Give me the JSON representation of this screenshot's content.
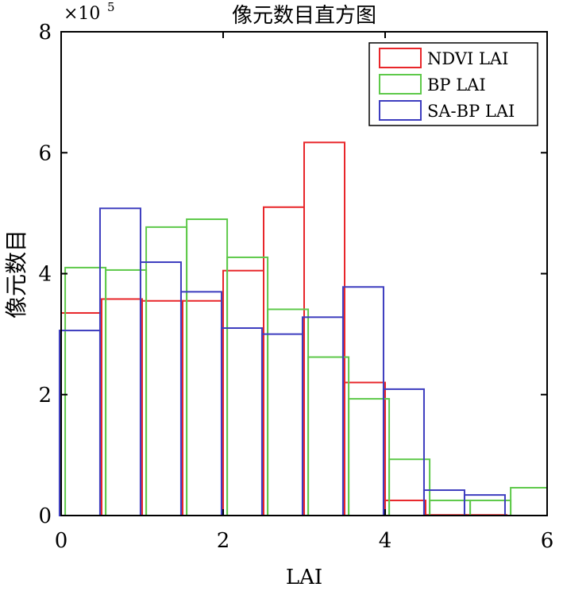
{
  "chart_data": {
    "type": "bar",
    "title": "像元数目直方图",
    "xlabel": "LAI",
    "ylabel": "像元数目",
    "y_multiplier": "×10",
    "y_multiplier_exp": "5",
    "xlim": [
      0,
      6
    ],
    "ylim": [
      0,
      8
    ],
    "xticks": [
      0,
      2,
      4,
      6
    ],
    "yticks": [
      0,
      2,
      4,
      6,
      8
    ],
    "xtick_labels": [
      "0",
      "2",
      "4",
      "6"
    ],
    "ytick_labels": [
      "0",
      "2",
      "4",
      "6",
      "8"
    ],
    "grid": false,
    "legend_position": "top-right",
    "bin_width": 0.5,
    "series": [
      {
        "name": "NDVI LAI",
        "color": "#e8262a",
        "x_offset": 0.0,
        "bar_width": 0.5,
        "values": [
          3.35,
          3.58,
          3.55,
          3.55,
          4.05,
          5.1,
          6.17,
          2.2,
          0.25,
          0.01,
          0.01,
          0.0
        ]
      },
      {
        "name": "BP LAI",
        "color": "#5ec94a",
        "x_offset": 0.05,
        "bar_width": 0.5,
        "values": [
          4.1,
          4.06,
          4.77,
          4.9,
          4.27,
          3.41,
          2.62,
          1.93,
          0.93,
          0.25,
          0.25,
          0.46
        ]
      },
      {
        "name": "SA-BP LAI",
        "color": "#3d3dbf",
        "x_offset": -0.02,
        "bar_width": 0.5,
        "values": [
          3.06,
          5.08,
          4.19,
          3.7,
          3.1,
          3.0,
          3.28,
          3.78,
          2.09,
          0.42,
          0.34,
          0.0
        ]
      }
    ]
  }
}
